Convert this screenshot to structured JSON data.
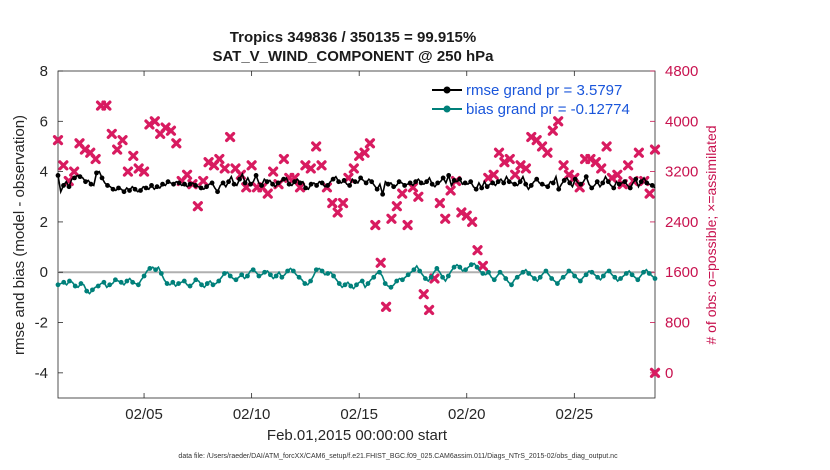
{
  "chart_data": {
    "type": "line",
    "title": "Tropics 349836 / 350135 = 99.915%",
    "subtitle": "SAT_V_WIND_COMPONENT @ 250 hPa",
    "xlabel": "Feb.01,2015 00:00:00 start",
    "ylabel": "rmse and bias (model - observation)",
    "ylabel_right": "# of obs: o=possible; ×=assimilated",
    "xlim": [
      1,
      28.75
    ],
    "ylim": [
      -5,
      8
    ],
    "ylim_right": [
      -400,
      4800
    ],
    "x_ticks": [
      5,
      10,
      15,
      20,
      25
    ],
    "x_tick_labels": [
      "02/05",
      "02/10",
      "02/15",
      "02/20",
      "02/25"
    ],
    "y_ticks": [
      -4,
      -2,
      0,
      2,
      4,
      6,
      8
    ],
    "y_tick_labels": [
      "-4",
      "-2",
      "0",
      "2",
      "4",
      "6",
      "8"
    ],
    "y_ticks_right": [
      0,
      800,
      1600,
      2400,
      3200,
      4000,
      4800
    ],
    "y_tick_labels_right": [
      "0",
      "800",
      "1600",
      "2400",
      "3200",
      "4000",
      "4800"
    ],
    "zero_line": 0,
    "series": [
      {
        "name": "rmse grand pr = 3.5797",
        "color": "#000000",
        "axis": "left",
        "marker": "circle",
        "values": [
          3.85,
          3.2,
          3.45,
          3.6,
          3.4,
          3.7,
          3.75,
          3.85,
          3.8,
          3.75,
          3.6,
          3.65,
          3.5,
          3.45,
          3.95,
          4.0,
          3.75,
          3.55,
          3.45,
          3.4,
          3.3,
          3.25,
          3.35,
          3.3,
          3.2,
          3.35,
          3.25,
          3.4,
          3.3,
          3.2,
          3.25,
          3.4,
          3.35,
          3.3,
          3.45,
          3.3,
          3.4,
          3.35,
          3.5,
          3.45,
          3.6,
          3.55,
          3.5,
          3.6,
          3.55,
          3.45,
          3.5,
          3.4,
          3.5,
          3.55,
          3.45,
          3.4,
          3.35,
          3.3,
          3.4,
          3.5,
          3.55,
          3.35,
          3.2,
          3.45,
          3.55,
          3.4,
          3.6,
          3.8,
          3.5,
          3.45,
          3.7,
          3.9,
          3.55,
          3.75,
          3.5,
          3.6,
          3.85,
          3.55,
          3.45,
          3.7,
          3.6,
          3.65,
          3.5,
          3.4,
          3.55,
          3.6,
          3.7,
          3.75,
          3.5,
          3.45,
          3.6,
          3.7,
          3.55,
          3.6,
          3.35,
          3.3,
          3.5,
          3.55,
          3.45,
          3.6,
          3.55,
          3.4,
          3.45,
          3.6,
          3.7,
          3.8,
          3.6,
          3.55,
          3.65,
          3.5,
          3.45,
          3.7,
          3.6,
          3.55,
          3.75,
          3.65,
          3.55,
          3.7,
          3.6,
          3.45,
          3.3,
          3.5,
          3.1,
          3.6,
          3.5,
          3.55,
          3.4,
          3.45,
          3.6,
          3.55,
          3.45,
          3.5,
          3.55,
          3.45,
          3.6,
          3.7,
          3.55,
          3.5,
          3.6,
          3.75,
          3.5,
          3.4,
          3.55,
          3.6,
          3.75,
          3.55,
          3.85,
          3.45,
          3.65,
          3.6,
          3.7,
          3.5,
          3.55,
          3.5,
          3.6,
          3.4,
          3.3,
          3.55,
          3.35,
          3.6,
          3.4,
          3.5,
          3.55,
          3.45,
          3.6,
          3.7,
          3.55,
          3.8,
          3.6,
          3.55,
          3.5,
          3.45,
          3.6,
          3.8,
          3.5,
          3.3,
          3.45,
          3.6,
          3.7,
          3.55,
          3.5,
          3.45,
          3.4,
          3.6,
          3.55,
          3.8,
          3.3,
          3.5,
          3.65,
          3.75,
          3.55,
          3.4,
          3.7,
          3.55,
          3.5,
          3.6,
          3.8,
          3.5,
          3.35,
          3.45,
          3.6,
          3.4,
          3.55,
          3.8,
          3.6,
          3.45,
          3.35,
          3.6,
          3.5,
          3.55,
          3.6,
          3.45,
          3.35,
          3.55,
          3.7,
          3.4,
          3.6,
          3.75,
          3.55,
          3.5,
          3.45,
          3.35
        ]
      },
      {
        "name": "bias grand pr = -0.12774",
        "color": "#00807a",
        "axis": "left",
        "marker": "circle",
        "values": [
          -0.5,
          -0.45,
          -0.4,
          -0.5,
          -0.35,
          -0.4,
          -0.55,
          -0.6,
          -0.45,
          -0.5,
          -0.75,
          -0.85,
          -0.7,
          -0.6,
          -0.55,
          -0.45,
          -0.4,
          -0.6,
          -0.5,
          -0.45,
          -0.3,
          -0.35,
          -0.4,
          -0.5,
          -0.35,
          -0.25,
          -0.4,
          -0.45,
          -0.5,
          -0.3,
          -0.15,
          0.05,
          0.15,
          0.2,
          0.1,
          0.2,
          -0.05,
          -0.3,
          -0.45,
          -0.5,
          -0.4,
          -0.55,
          -0.45,
          -0.4,
          -0.35,
          -0.5,
          -0.55,
          -0.45,
          -0.3,
          -0.35,
          -0.5,
          -0.6,
          -0.45,
          -0.35,
          -0.5,
          -0.45,
          -0.35,
          -0.2,
          -0.05,
          0.0,
          -0.15,
          -0.25,
          -0.3,
          -0.2,
          -0.1,
          -0.25,
          -0.15,
          0.05,
          0.1,
          0.0,
          -0.15,
          -0.1,
          0.0,
          0.05,
          -0.1,
          -0.25,
          -0.15,
          0.0,
          -0.2,
          -0.1,
          0.05,
          0.15,
          0.05,
          -0.1,
          -0.2,
          -0.3,
          -0.45,
          -0.5,
          -0.35,
          -0.15,
          0.1,
          0.15,
          0.05,
          -0.1,
          -0.05,
          0.0,
          -0.15,
          -0.3,
          -0.45,
          -0.6,
          -0.5,
          -0.4,
          -0.55,
          -0.65,
          -0.5,
          -0.4,
          -0.35,
          -0.6,
          -0.45,
          -0.3,
          -0.2,
          -0.05,
          0.0,
          -0.15,
          -0.45,
          -0.55,
          -0.6,
          -0.5,
          -0.35,
          -0.25,
          -0.3,
          -0.2,
          -0.1,
          0.0,
          0.1,
          0.25,
          0.05,
          -0.1,
          -0.25,
          -0.35,
          -0.2,
          0.0,
          0.15,
          0.0,
          -0.2,
          -0.35,
          -0.15,
          0.05,
          0.2,
          0.3,
          0.2,
          0.05,
          0.1,
          0.2,
          0.3,
          0.35,
          0.2,
          0.05,
          -0.05,
          -0.1,
          0.0,
          -0.2,
          -0.3,
          -0.15,
          0.0,
          -0.1,
          -0.25,
          -0.4,
          -0.5,
          -0.3,
          -0.2,
          -0.1,
          0.0,
          0.1,
          -0.05,
          -0.15,
          -0.25,
          -0.35,
          -0.2,
          -0.05,
          0.05,
          -0.1,
          -0.25,
          -0.35,
          -0.45,
          -0.3,
          -0.2,
          -0.1,
          0.05,
          0.0,
          -0.15,
          -0.25,
          -0.35,
          -0.2,
          -0.1,
          0.05,
          0.0,
          -0.1,
          -0.2,
          -0.3,
          -0.15,
          0.0,
          0.05,
          -0.1,
          -0.2,
          -0.35,
          -0.25,
          -0.15,
          -0.05,
          0.05,
          -0.1,
          -0.2,
          -0.3,
          -0.15,
          0.0,
          0.1,
          -0.05,
          -0.15,
          -0.25
        ]
      }
    ],
    "obs_assimilated": {
      "name": "assimilated",
      "color": "#d81b60",
      "axis": "right",
      "marker": "x",
      "points": [
        [
          1,
          3700
        ],
        [
          1.25,
          3300
        ],
        [
          1.5,
          3050
        ],
        [
          1.75,
          3200
        ],
        [
          2,
          3650
        ],
        [
          2.25,
          3550
        ],
        [
          2.5,
          3500
        ],
        [
          2.75,
          3400
        ],
        [
          3,
          4250
        ],
        [
          3.25,
          4250
        ],
        [
          3.5,
          3800
        ],
        [
          3.75,
          3550
        ],
        [
          4,
          3700
        ],
        [
          4.25,
          3200
        ],
        [
          4.5,
          3450
        ],
        [
          4.75,
          3250
        ],
        [
          5,
          3200
        ],
        [
          5.25,
          3950
        ],
        [
          5.5,
          4000
        ],
        [
          5.75,
          3800
        ],
        [
          6,
          3900
        ],
        [
          6.25,
          3850
        ],
        [
          6.5,
          3650
        ],
        [
          6.75,
          3050
        ],
        [
          7,
          3150
        ],
        [
          7.25,
          3000
        ],
        [
          7.5,
          2650
        ],
        [
          7.75,
          3050
        ],
        [
          8,
          3350
        ],
        [
          8.25,
          3300
        ],
        [
          8.5,
          3400
        ],
        [
          8.75,
          3250
        ],
        [
          9,
          3750
        ],
        [
          9.25,
          3250
        ],
        [
          9.5,
          3150
        ],
        [
          9.75,
          2950
        ],
        [
          10,
          3300
        ],
        [
          10.25,
          2950
        ],
        [
          10.5,
          2950
        ],
        [
          10.75,
          2850
        ],
        [
          11,
          3200
        ],
        [
          11.25,
          3000
        ],
        [
          11.5,
          3400
        ],
        [
          11.75,
          3100
        ],
        [
          12,
          3100
        ],
        [
          12.25,
          2950
        ],
        [
          12.5,
          3300
        ],
        [
          12.75,
          3250
        ],
        [
          13,
          3600
        ],
        [
          13.25,
          3300
        ],
        [
          13.5,
          2950
        ],
        [
          13.75,
          2700
        ],
        [
          14,
          2550
        ],
        [
          14.25,
          2700
        ],
        [
          14.5,
          3100
        ],
        [
          14.75,
          3250
        ],
        [
          15,
          3450
        ],
        [
          15.25,
          3500
        ],
        [
          15.5,
          3650
        ],
        [
          15.75,
          2350
        ],
        [
          16,
          1750
        ],
        [
          16.25,
          1050
        ],
        [
          16.5,
          2450
        ],
        [
          16.75,
          2650
        ],
        [
          17,
          2850
        ],
        [
          17.25,
          2350
        ],
        [
          17.5,
          2950
        ],
        [
          17.75,
          2800
        ],
        [
          18,
          1250
        ],
        [
          18.25,
          1000
        ],
        [
          18.5,
          1500
        ],
        [
          18.75,
          2700
        ],
        [
          19,
          2450
        ],
        [
          19.25,
          2900
        ],
        [
          19.5,
          3050
        ],
        [
          19.75,
          2550
        ],
        [
          20,
          2500
        ],
        [
          20.25,
          2400
        ],
        [
          20.5,
          1950
        ],
        [
          20.75,
          1700
        ],
        [
          21,
          3100
        ],
        [
          21.25,
          3150
        ],
        [
          21.5,
          3500
        ],
        [
          21.75,
          3350
        ],
        [
          22,
          3400
        ],
        [
          22.25,
          3150
        ],
        [
          22.5,
          3300
        ],
        [
          22.75,
          3250
        ],
        [
          23,
          3750
        ],
        [
          23.25,
          3700
        ],
        [
          23.5,
          3600
        ],
        [
          23.75,
          3500
        ],
        [
          24,
          3850
        ],
        [
          24.25,
          4000
        ],
        [
          24.5,
          3300
        ],
        [
          24.75,
          3150
        ],
        [
          25,
          3100
        ],
        [
          25.25,
          2950
        ],
        [
          25.5,
          3400
        ],
        [
          25.75,
          3400
        ],
        [
          26,
          3350
        ],
        [
          26.25,
          3250
        ],
        [
          26.5,
          3600
        ],
        [
          26.75,
          3100
        ],
        [
          27,
          3150
        ],
        [
          27.25,
          3000
        ],
        [
          27.5,
          3300
        ],
        [
          27.75,
          3050
        ],
        [
          28,
          3500
        ],
        [
          28.25,
          3050
        ],
        [
          28.5,
          2850
        ],
        [
          28.75,
          3550
        ]
      ]
    },
    "obs_possible_last": [
      [
        28.75,
        0
      ]
    ],
    "legend_position": "top-right",
    "grid": false,
    "footer": "data file: /Users/raeder/DAI/ATM_forcXX/CAM6_setup/f.e21.FHIST_BGC.f09_025.CAM6assim.011/Diags_NTrS_2015-02/obs_diag_output.nc"
  }
}
